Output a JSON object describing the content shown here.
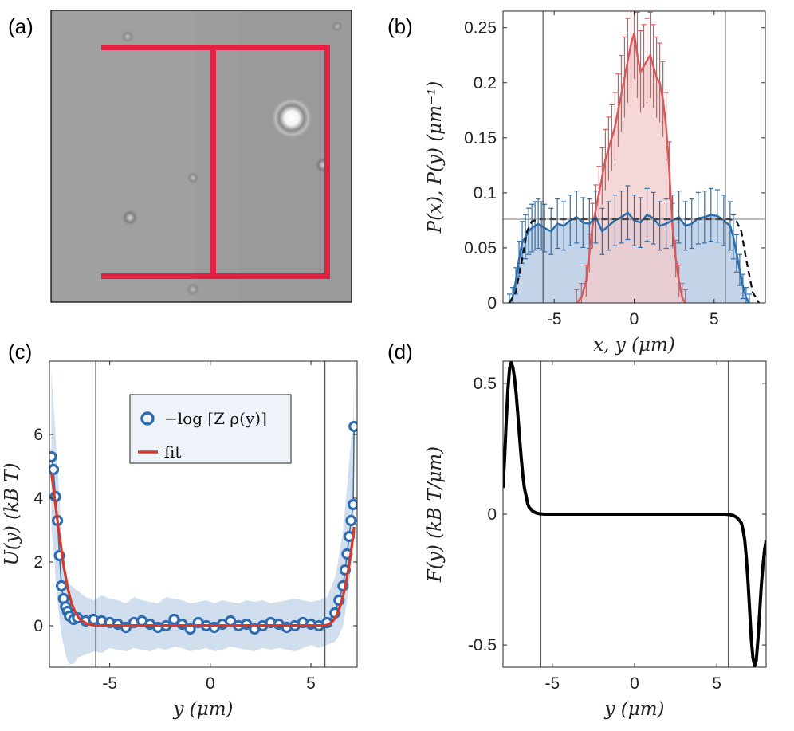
{
  "figure": {
    "panel_labels": [
      "(a)",
      "(b)",
      "(c)",
      "(d)"
    ]
  },
  "colors": {
    "red_series": "#d9595d",
    "red_fill": "#f3c9c9",
    "blue_series": "#2d6fae",
    "blue_fill": "#b8cde4",
    "fit_red": "#d33a2c",
    "marker_blue": "#2f6db0",
    "micro_bg": "#9c9c9c",
    "overlay_red": "#e52143"
  },
  "chart_data": [
    {
      "panel": "(a)",
      "type": "image",
      "description_marks": [
        "microscopy image with red H-shaped channel outline"
      ]
    },
    {
      "panel": "(b)",
      "type": "area",
      "xlabel": "x, y (μm)",
      "ylabel": "P(x), P(y) (μm⁻¹)",
      "xlim": [
        -8.2,
        8.2
      ],
      "ylim": [
        0,
        0.265
      ],
      "xticks": [
        -5,
        0,
        5
      ],
      "xtick_labels": [
        "-5",
        "0",
        "5"
      ],
      "yticks": [
        0,
        0.05,
        0.1,
        0.15,
        0.2,
        0.25
      ],
      "ytick_labels": [
        "0",
        "0.05",
        "0.1",
        "0.15",
        "0.2",
        "0.25"
      ],
      "vlines": [
        -5.7,
        5.7
      ],
      "hline": 0.076,
      "series": [
        {
          "name": "P(x)",
          "color": "red",
          "x": [
            -3.6,
            -3.3,
            -3.0,
            -2.8,
            -2.6,
            -2.4,
            -2.2,
            -2.0,
            -1.8,
            -1.6,
            -1.4,
            -1.2,
            -1.0,
            -0.8,
            -0.6,
            -0.4,
            -0.2,
            0.0,
            0.2,
            0.4,
            0.6,
            0.8,
            1.0,
            1.2,
            1.4,
            1.6,
            1.8,
            2.0,
            2.2,
            2.4,
            2.6,
            2.8,
            3.0,
            3.2
          ],
          "y": [
            0.0,
            0.005,
            0.02,
            0.045,
            0.07,
            0.085,
            0.1,
            0.115,
            0.13,
            0.14,
            0.15,
            0.16,
            0.175,
            0.19,
            0.205,
            0.22,
            0.235,
            0.245,
            0.225,
            0.21,
            0.215,
            0.22,
            0.225,
            0.215,
            0.205,
            0.2,
            0.185,
            0.16,
            0.12,
            0.07,
            0.04,
            0.02,
            0.005,
            0.0
          ]
        },
        {
          "name": "P(y)",
          "color": "blue",
          "x": [
            -7.8,
            -7.6,
            -7.4,
            -7.2,
            -7.0,
            -6.8,
            -6.6,
            -6.4,
            -6.2,
            -6.0,
            -5.8,
            -5.6,
            -5.2,
            -4.8,
            -4.4,
            -4.0,
            -3.6,
            -3.2,
            -2.8,
            -2.4,
            -2.0,
            -1.6,
            -1.2,
            -0.8,
            -0.4,
            0.0,
            0.4,
            0.8,
            1.2,
            1.6,
            2.0,
            2.4,
            2.8,
            3.2,
            3.6,
            4.0,
            4.4,
            4.8,
            5.2,
            5.6,
            6.0,
            6.2,
            6.4,
            6.6,
            6.8,
            7.0,
            7.2
          ],
          "y": [
            0.0,
            0.005,
            0.02,
            0.04,
            0.055,
            0.06,
            0.065,
            0.068,
            0.07,
            0.072,
            0.07,
            0.068,
            0.065,
            0.072,
            0.07,
            0.075,
            0.078,
            0.073,
            0.072,
            0.078,
            0.065,
            0.07,
            0.075,
            0.078,
            0.082,
            0.075,
            0.073,
            0.08,
            0.077,
            0.07,
            0.072,
            0.075,
            0.078,
            0.07,
            0.072,
            0.077,
            0.078,
            0.08,
            0.079,
            0.075,
            0.07,
            0.06,
            0.045,
            0.03,
            0.015,
            0.005,
            0.0
          ]
        },
        {
          "name": "model",
          "color": "black-dashed",
          "x": [
            -7.8,
            -7.4,
            -7.0,
            -6.7,
            -6.4,
            -6.0,
            -5.6,
            5.6,
            6.0,
            6.4,
            6.7,
            7.0,
            7.4,
            7.8
          ],
          "y": [
            0.0,
            0.01,
            0.04,
            0.065,
            0.074,
            0.076,
            0.076,
            0.076,
            0.076,
            0.074,
            0.065,
            0.04,
            0.01,
            0.0
          ]
        }
      ]
    },
    {
      "panel": "(c)",
      "type": "scatter",
      "xlabel": "y (μm)",
      "ylabel": "U(y) (kB T)",
      "xlim": [
        -8.0,
        7.3
      ],
      "ylim": [
        -1.3,
        8.3
      ],
      "xticks": [
        -5,
        0,
        5
      ],
      "xtick_labels": [
        "-5",
        "0",
        "5"
      ],
      "yticks": [
        0,
        2,
        4,
        6
      ],
      "ytick_labels": [
        "0",
        "2",
        "4",
        "6"
      ],
      "vlines": [
        -5.7,
        5.7
      ],
      "legend": [
        {
          "label": "−log [Z ρ(y)]",
          "style": "circle-marker"
        },
        {
          "label": "fit",
          "style": "red-line"
        }
      ],
      "series": [
        {
          "name": "−log [Z ρ(y)]",
          "x": [
            -7.9,
            -7.8,
            -7.7,
            -7.6,
            -7.5,
            -7.4,
            -7.3,
            -7.2,
            -7.1,
            -7.0,
            -6.8,
            -6.6,
            -6.2,
            -5.8,
            -5.4,
            -5.0,
            -4.6,
            -4.2,
            -3.8,
            -3.4,
            -3.0,
            -2.6,
            -2.2,
            -1.8,
            -1.4,
            -1.0,
            -0.6,
            -0.2,
            0.2,
            0.6,
            1.0,
            1.4,
            1.8,
            2.2,
            2.6,
            3.0,
            3.4,
            3.8,
            4.2,
            4.6,
            5.0,
            5.4,
            5.8,
            6.2,
            6.4,
            6.6,
            6.7,
            6.8,
            6.9,
            7.0,
            7.1,
            7.15
          ],
          "y": [
            5.3,
            4.9,
            4.05,
            3.3,
            2.2,
            1.25,
            0.85,
            0.6,
            0.45,
            0.3,
            0.2,
            0.25,
            0.15,
            0.2,
            0.15,
            0.1,
            0.05,
            -0.05,
            0.1,
            0.15,
            0.05,
            -0.05,
            0.0,
            0.2,
            0.05,
            -0.1,
            0.1,
            0.0,
            -0.05,
            0.05,
            0.15,
            0.0,
            0.05,
            -0.1,
            0.0,
            0.1,
            0.05,
            -0.05,
            0.0,
            0.1,
            0.05,
            0.0,
            0.1,
            0.4,
            0.8,
            1.25,
            1.75,
            2.25,
            2.8,
            3.3,
            3.8,
            6.25
          ],
          "band_upper": [
            8.0,
            7.0,
            6.0,
            5.0,
            4.0,
            3.0,
            2.2,
            1.8,
            1.5,
            1.3,
            1.2,
            1.1,
            0.9,
            0.8,
            0.95,
            0.85,
            0.8,
            0.7,
            0.9,
            0.8,
            0.75,
            0.7,
            0.9,
            0.85,
            0.8,
            0.7,
            0.75,
            0.8,
            0.7,
            0.8,
            0.75,
            0.7,
            0.8,
            0.75,
            0.8,
            0.7,
            0.75,
            0.8,
            0.85,
            0.8,
            0.75,
            0.8,
            0.9,
            1.5,
            2.2,
            3.0,
            3.7,
            4.4,
            5.1,
            5.8,
            6.4,
            7.8
          ],
          "band_lower": [
            3.0,
            2.5,
            1.5,
            0.8,
            0.2,
            -0.3,
            -0.6,
            -0.9,
            -1.1,
            -1.2,
            -1.2,
            -1.0,
            -0.9,
            -0.8,
            -0.85,
            -0.7,
            -0.75,
            -0.8,
            -0.7,
            -0.75,
            -0.8,
            -0.7,
            -0.75,
            -0.65,
            -0.7,
            -0.8,
            -0.75,
            -0.7,
            -0.8,
            -0.75,
            -0.65,
            -0.7,
            -0.75,
            -0.8,
            -0.7,
            -0.75,
            -0.7,
            -0.75,
            -0.8,
            -0.7,
            -0.6,
            -0.7,
            -0.6,
            -0.5,
            -0.3,
            0.0,
            0.4,
            0.8,
            1.3,
            1.8,
            2.4,
            4.6
          ]
        },
        {
          "name": "fit",
          "x": [
            -7.9,
            -7.7,
            -7.5,
            -7.3,
            -7.1,
            -6.9,
            -6.7,
            -6.5,
            -6.3,
            -6.1,
            -5.9,
            -5.7,
            5.7,
            5.9,
            6.1,
            6.3,
            6.5,
            6.7,
            6.9,
            7.1,
            7.15
          ],
          "y": [
            4.8,
            3.8,
            2.8,
            1.9,
            1.2,
            0.7,
            0.4,
            0.22,
            0.12,
            0.06,
            0.03,
            0.01,
            0.01,
            0.05,
            0.15,
            0.35,
            0.7,
            1.2,
            1.9,
            2.8,
            3.1
          ]
        }
      ]
    },
    {
      "panel": "(d)",
      "type": "line",
      "xlabel": "y (μm)",
      "ylabel": "F(y) (kB T/μm)",
      "xlim": [
        -8.0,
        8.0
      ],
      "ylim": [
        -0.585,
        0.585
      ],
      "xticks": [
        -5,
        0,
        5
      ],
      "xtick_labels": [
        "-5",
        "0",
        "5"
      ],
      "yticks": [
        -0.5,
        0,
        0.5
      ],
      "ytick_labels": [
        "-0.5",
        "0",
        "0.5"
      ],
      "vlines": [
        -5.7,
        5.7
      ],
      "series": [
        {
          "name": "F(y)",
          "x": [
            -8.0,
            -7.9,
            -7.8,
            -7.7,
            -7.6,
            -7.5,
            -7.4,
            -7.3,
            -7.2,
            -7.1,
            -7.0,
            -6.9,
            -6.8,
            -6.7,
            -6.6,
            -6.5,
            -6.4,
            -6.2,
            -6.0,
            -5.8,
            -5.5,
            -5.0,
            0.0,
            5.0,
            5.5,
            5.8,
            6.0,
            6.2,
            6.4,
            6.5,
            6.6,
            6.7,
            6.8,
            6.9,
            7.0,
            7.1,
            7.2,
            7.3,
            7.4,
            7.5,
            7.6,
            7.7,
            7.8,
            7.9,
            8.0
          ],
          "y": [
            0.1,
            0.22,
            0.36,
            0.48,
            0.56,
            0.58,
            0.56,
            0.52,
            0.46,
            0.38,
            0.3,
            0.22,
            0.15,
            0.1,
            0.07,
            0.04,
            0.025,
            0.012,
            0.005,
            0.002,
            0.0,
            0.0,
            0.0,
            0.0,
            0.0,
            -0.002,
            -0.005,
            -0.012,
            -0.025,
            -0.035,
            -0.06,
            -0.1,
            -0.17,
            -0.26,
            -0.37,
            -0.48,
            -0.55,
            -0.58,
            -0.56,
            -0.48,
            -0.38,
            -0.28,
            -0.2,
            -0.14,
            -0.1
          ]
        }
      ]
    }
  ]
}
